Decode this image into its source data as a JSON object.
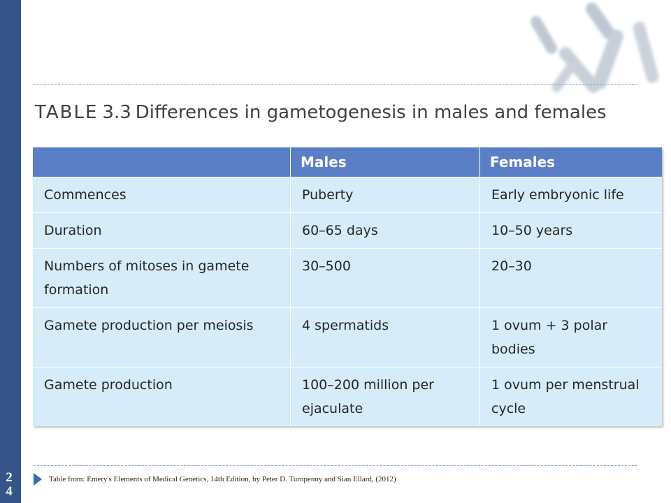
{
  "slide": {
    "page_number": [
      "2",
      "4"
    ],
    "source_note": "Table from: Emery's Elements of Medical Genetics, 14th Edition, by Peter D. Turnpenny and Sian Ellard, (2012)"
  },
  "table": {
    "label": "TABLE",
    "number": "3.3",
    "title": "Differences in gametogenesis in males and females",
    "headers": [
      "",
      "Males",
      "Females"
    ],
    "rows": [
      [
        "Commences",
        "Puberty",
        "Early embryonic life"
      ],
      [
        "Duration",
        "60–65 days",
        "10–50 years"
      ],
      [
        "Numbers of mitoses in gamete formation",
        "30–500",
        "20–30"
      ],
      [
        "Gamete production per meiosis",
        "4 spermatids",
        "1 ovum + 3 polar bodies"
      ],
      [
        "Gamete production",
        "100–200 million per ejaculate",
        "1 ovum per menstrual cycle"
      ]
    ]
  },
  "colors": {
    "left_bar": "#34548a",
    "header_bg": "#5b7fc7",
    "cell_bg": "#d6ecf8",
    "arrow": "#2f6fb8"
  },
  "decoration": "chromosome-image"
}
